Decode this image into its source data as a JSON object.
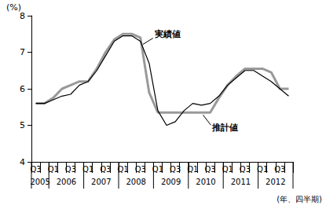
{
  "chart_data": {
    "type": "line",
    "y_label": "(%)",
    "x_label": "(年、四半期)",
    "categories": [
      "Q3",
      null,
      "Q1",
      null,
      "Q3",
      null,
      "Q1",
      null,
      "Q3",
      null,
      "Q1",
      null,
      "Q3",
      null,
      "Q1",
      null,
      "Q3",
      null,
      "Q1",
      null,
      "Q3",
      null,
      "Q1",
      null,
      "Q3",
      null,
      "Q1",
      null,
      "Q3",
      null
    ],
    "years": [
      "2005",
      "2005",
      "2006",
      "2006",
      "2006",
      "2006",
      "2007",
      "2007",
      "2007",
      "2007",
      "2008",
      "2008",
      "2008",
      "2008",
      "2009",
      "2009",
      "2009",
      "2009",
      "2010",
      "2010",
      "2010",
      "2010",
      "2011",
      "2011",
      "2011",
      "2011",
      "2012",
      "2012",
      "2012",
      "2012"
    ],
    "series": [
      {
        "name": "実績値",
        "color": "#000000",
        "line_style": "thin",
        "values": [
          5.6,
          5.6,
          5.7,
          5.8,
          5.85,
          6.1,
          6.2,
          6.5,
          6.9,
          7.3,
          7.45,
          7.45,
          7.3,
          6.7,
          5.4,
          5.0,
          5.1,
          5.4,
          5.6,
          5.55,
          5.6,
          5.8,
          6.1,
          6.3,
          6.5,
          6.5,
          6.35,
          6.2,
          6.0,
          5.8
        ]
      },
      {
        "name": "推計値",
        "color": "#999999",
        "line_style": "thick",
        "values": [
          5.6,
          5.6,
          5.75,
          6.0,
          6.1,
          6.2,
          6.2,
          6.55,
          7.0,
          7.35,
          7.5,
          7.5,
          7.4,
          5.9,
          5.35,
          5.35,
          5.35,
          5.35,
          5.35,
          5.35,
          5.35,
          5.75,
          6.1,
          6.35,
          6.55,
          6.55,
          6.55,
          6.45,
          6.0,
          6.0
        ]
      }
    ],
    "ylim": [
      4,
      8
    ],
    "yticks": [
      4,
      5,
      6,
      7,
      8
    ],
    "grid": false
  }
}
